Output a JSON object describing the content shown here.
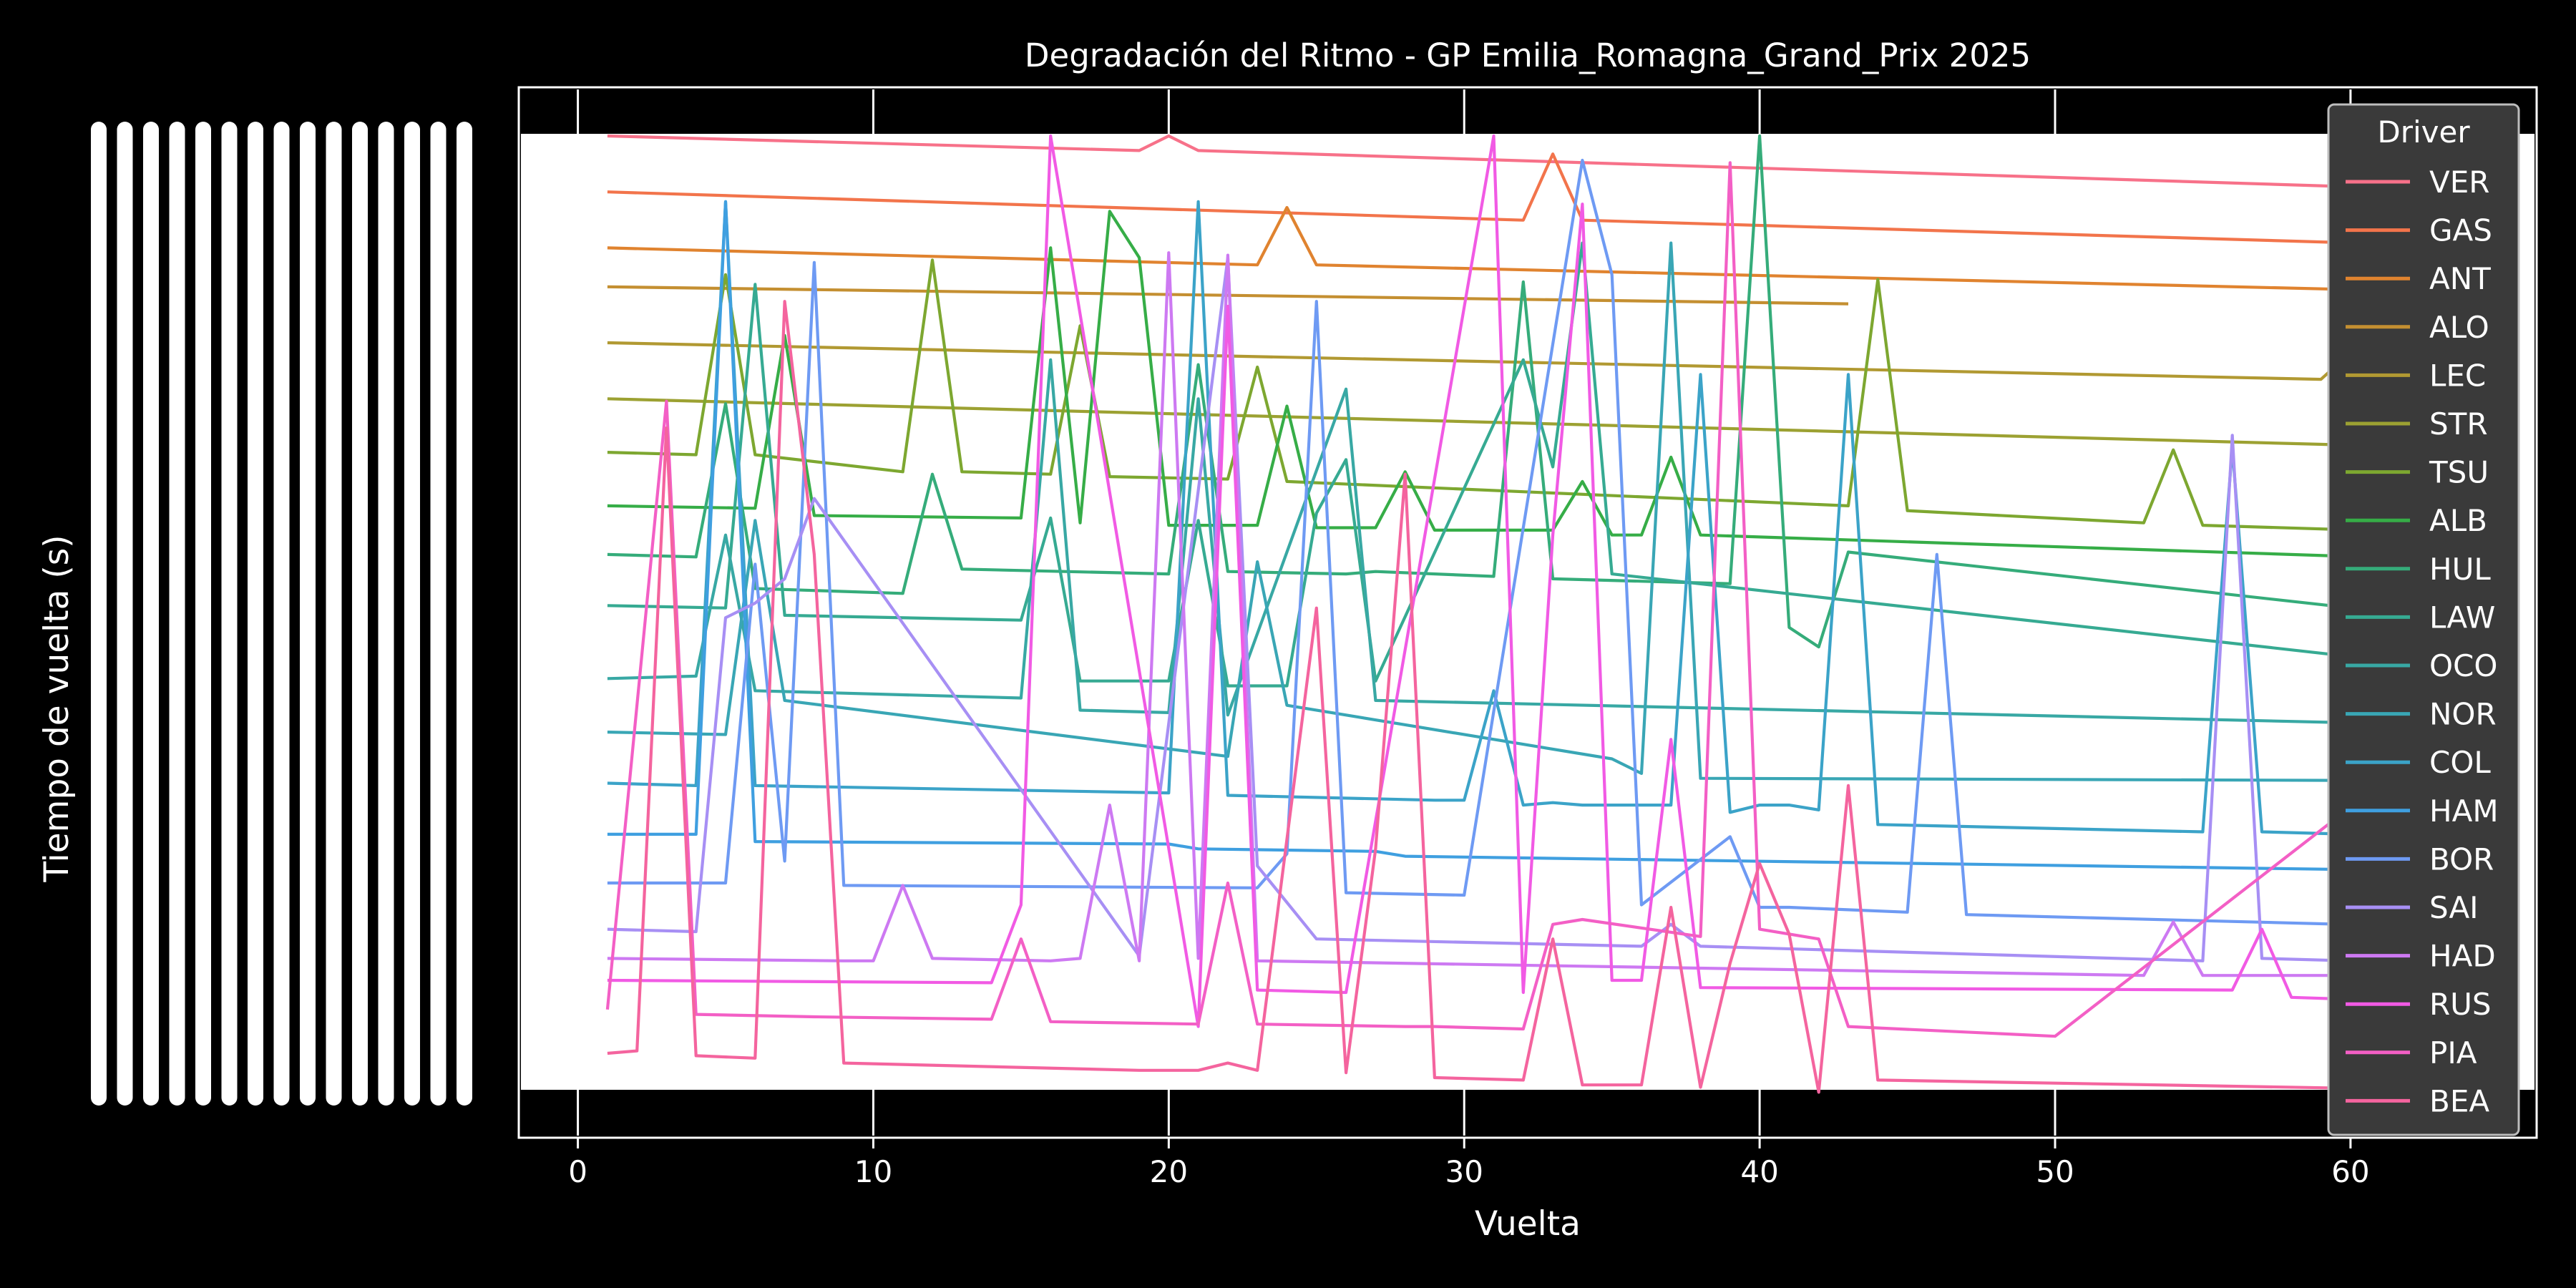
{
  "chart_data": {
    "type": "line",
    "title": "Degradación del Ritmo - GP Emilia_Romagna_Grand_Prix 2025",
    "xlabel": "Vuelta",
    "ylabel": "Tiempo de vuelta (s)",
    "xlim": [
      -2,
      66.3
    ],
    "x_ticks": [
      0,
      10,
      20,
      30,
      40,
      50,
      60
    ],
    "grid": true,
    "y_tick_labels_illegible": true,
    "legend": {
      "title": "Driver",
      "placement": "right"
    },
    "series": [
      {
        "name": "VER",
        "color": "#f77189",
        "points": [
          [
            1,
            0.0
          ],
          [
            19,
            0.3
          ],
          [
            20,
            0.0
          ],
          [
            21,
            0.3
          ],
          [
            63,
            1.1
          ]
        ]
      },
      {
        "name": "GAS",
        "color": "#f2744b",
        "points": [
          [
            1,
            1.15
          ],
          [
            32,
            1.73
          ],
          [
            33,
            0.37
          ],
          [
            34,
            1.73
          ],
          [
            63,
            2.25
          ]
        ]
      },
      {
        "name": "ANT",
        "color": "#e0832f",
        "points": [
          [
            1,
            2.3
          ],
          [
            23,
            2.65
          ],
          [
            24,
            1.47
          ],
          [
            25,
            2.65
          ],
          [
            63,
            3.2
          ]
        ]
      },
      {
        "name": "ALO",
        "color": "#c48f31",
        "points": [
          [
            1,
            3.1
          ],
          [
            43,
            3.45
          ]
        ]
      },
      {
        "name": "LEC",
        "color": "#b19932",
        "points": [
          [
            1,
            4.25
          ],
          [
            59,
            5.0
          ],
          [
            60,
            4.45
          ],
          [
            61,
            5.0
          ],
          [
            63,
            5.1
          ]
        ]
      },
      {
        "name": "STR",
        "color": "#9ca132",
        "points": [
          [
            1,
            5.4
          ],
          [
            63,
            6.4
          ]
        ]
      },
      {
        "name": "TSU",
        "color": "#7da730",
        "points": [
          [
            1,
            6.5
          ],
          [
            4,
            6.55
          ],
          [
            5,
            2.85
          ],
          [
            6,
            6.55
          ],
          [
            11,
            6.9
          ],
          [
            12,
            2.55
          ],
          [
            13,
            6.9
          ],
          [
            16,
            6.95
          ],
          [
            17,
            3.9
          ],
          [
            18,
            7.0
          ],
          [
            22,
            7.05
          ],
          [
            23,
            4.75
          ],
          [
            24,
            7.1
          ],
          [
            43,
            7.6
          ],
          [
            44,
            2.95
          ],
          [
            45,
            7.7
          ],
          [
            53,
            7.95
          ],
          [
            54,
            6.45
          ],
          [
            55,
            8.0
          ],
          [
            63,
            8.15
          ]
        ]
      },
      {
        "name": "ALB",
        "color": "#36ad47",
        "points": [
          [
            1,
            7.6
          ],
          [
            6,
            7.65
          ],
          [
            7,
            4.1
          ],
          [
            8,
            7.8
          ],
          [
            15,
            7.85
          ],
          [
            16,
            2.3
          ],
          [
            17,
            7.95
          ],
          [
            18,
            1.55
          ],
          [
            19,
            2.5
          ],
          [
            20,
            8.0
          ],
          [
            23,
            8.0
          ],
          [
            24,
            5.55
          ],
          [
            25,
            8.05
          ],
          [
            27,
            8.05
          ],
          [
            28,
            6.9
          ],
          [
            29,
            8.1
          ],
          [
            33,
            8.1
          ],
          [
            34,
            7.1
          ],
          [
            35,
            8.2
          ],
          [
            36,
            8.2
          ],
          [
            37,
            6.6
          ],
          [
            38,
            8.2
          ],
          [
            63,
            8.7
          ]
        ]
      },
      {
        "name": "HUL",
        "color": "#35ac7a",
        "points": [
          [
            1,
            8.6
          ],
          [
            4,
            8.65
          ],
          [
            5,
            5.5
          ],
          [
            6,
            9.3
          ],
          [
            11,
            9.4
          ],
          [
            12,
            6.95
          ],
          [
            13,
            8.9
          ],
          [
            20,
            9.0
          ],
          [
            21,
            4.7
          ],
          [
            22,
            8.95
          ],
          [
            26,
            9.0
          ],
          [
            27,
            8.95
          ],
          [
            31,
            9.05
          ],
          [
            32,
            3.0
          ],
          [
            33,
            9.1
          ],
          [
            39,
            9.2
          ],
          [
            40,
            0.0
          ],
          [
            41,
            10.1
          ],
          [
            42,
            10.5
          ],
          [
            43,
            8.55
          ],
          [
            63,
            9.9
          ]
        ]
      },
      {
        "name": "LAW",
        "color": "#36aa92",
        "points": [
          [
            1,
            9.65
          ],
          [
            5,
            9.7
          ],
          [
            6,
            3.05
          ],
          [
            7,
            9.85
          ],
          [
            15,
            9.95
          ],
          [
            16,
            7.85
          ],
          [
            17,
            11.2
          ],
          [
            20,
            11.2
          ],
          [
            21,
            7.9
          ],
          [
            22,
            11.3
          ],
          [
            24,
            11.3
          ],
          [
            25,
            7.75
          ],
          [
            26,
            6.65
          ],
          [
            27,
            11.2
          ],
          [
            32,
            4.6
          ],
          [
            33,
            6.8
          ],
          [
            34,
            2.2
          ],
          [
            35,
            9.0
          ],
          [
            63,
            10.9
          ]
        ]
      },
      {
        "name": "OCO",
        "color": "#38a8a4",
        "points": [
          [
            1,
            11.15
          ],
          [
            4,
            11.1
          ],
          [
            5,
            8.2
          ],
          [
            6,
            11.4
          ],
          [
            15,
            11.55
          ],
          [
            16,
            4.6
          ],
          [
            17,
            11.8
          ],
          [
            20,
            11.85
          ],
          [
            21,
            5.4
          ],
          [
            22,
            11.9
          ],
          [
            26,
            5.2
          ],
          [
            27,
            11.6
          ],
          [
            63,
            12.1
          ]
        ]
      },
      {
        "name": "NOR",
        "color": "#39a6b5",
        "points": [
          [
            1,
            12.25
          ],
          [
            5,
            12.3
          ],
          [
            6,
            7.9
          ],
          [
            7,
            11.6
          ],
          [
            22,
            12.75
          ],
          [
            23,
            8.75
          ],
          [
            24,
            11.7
          ],
          [
            35,
            12.8
          ],
          [
            36,
            13.1
          ],
          [
            37,
            2.2
          ],
          [
            38,
            13.2
          ],
          [
            63,
            13.25
          ]
        ]
      },
      {
        "name": "COL",
        "color": "#3ba3c8",
        "points": [
          [
            1,
            13.3
          ],
          [
            4,
            13.35
          ],
          [
            5,
            1.35
          ],
          [
            6,
            13.35
          ],
          [
            20,
            13.5
          ],
          [
            21,
            1.35
          ],
          [
            22,
            13.55
          ],
          [
            29,
            13.65
          ],
          [
            30,
            13.65
          ],
          [
            31,
            11.4
          ],
          [
            32,
            13.75
          ],
          [
            33,
            13.7
          ],
          [
            34,
            13.75
          ],
          [
            35,
            13.75
          ],
          [
            36,
            13.75
          ],
          [
            37,
            13.75
          ],
          [
            38,
            4.9
          ],
          [
            39,
            13.9
          ],
          [
            40,
            13.75
          ],
          [
            41,
            13.75
          ],
          [
            42,
            13.85
          ],
          [
            43,
            4.9
          ],
          [
            44,
            14.15
          ],
          [
            55,
            14.3
          ],
          [
            56,
            6.4
          ],
          [
            57,
            14.3
          ],
          [
            63,
            14.4
          ]
        ]
      },
      {
        "name": "HAM",
        "color": "#3f9fe0",
        "points": [
          [
            1,
            14.35
          ],
          [
            4,
            14.35
          ],
          [
            5,
            1.35
          ],
          [
            6,
            14.5
          ],
          [
            20,
            14.55
          ],
          [
            21,
            14.65
          ],
          [
            27,
            14.7
          ],
          [
            28,
            14.8
          ],
          [
            63,
            15.1
          ]
        ]
      },
      {
        "name": "BOR",
        "color": "#6e9af3",
        "points": [
          [
            1,
            15.35
          ],
          [
            5,
            15.35
          ],
          [
            6,
            8.8
          ],
          [
            7,
            14.9
          ],
          [
            8,
            2.6
          ],
          [
            9,
            15.4
          ],
          [
            23,
            15.45
          ],
          [
            24,
            14.75
          ],
          [
            25,
            3.4
          ],
          [
            26,
            15.55
          ],
          [
            30,
            15.6
          ],
          [
            34,
            0.5
          ],
          [
            35,
            2.85
          ],
          [
            36,
            15.8
          ],
          [
            39,
            14.4
          ],
          [
            40,
            15.85
          ],
          [
            41,
            15.85
          ],
          [
            45,
            15.95
          ],
          [
            46,
            8.6
          ],
          [
            47,
            16.0
          ],
          [
            63,
            16.25
          ]
        ]
      },
      {
        "name": "SAI",
        "color": "#a78ff4",
        "points": [
          [
            1,
            16.3
          ],
          [
            4,
            16.35
          ],
          [
            5,
            9.9
          ],
          [
            6,
            9.6
          ],
          [
            7,
            9.1
          ],
          [
            8,
            7.45
          ],
          [
            19,
            16.85
          ],
          [
            22,
            2.5
          ],
          [
            23,
            15.0
          ],
          [
            25,
            16.5
          ],
          [
            36,
            16.65
          ],
          [
            37,
            16.2
          ],
          [
            38,
            16.65
          ],
          [
            55,
            16.95
          ],
          [
            56,
            6.15
          ],
          [
            57,
            16.9
          ],
          [
            63,
            17.0
          ]
        ]
      },
      {
        "name": "HAD",
        "color": "#cd79f2",
        "points": [
          [
            1,
            16.9
          ],
          [
            9,
            16.95
          ],
          [
            10,
            16.95
          ],
          [
            11,
            15.4
          ],
          [
            12,
            16.9
          ],
          [
            16,
            16.95
          ],
          [
            17,
            16.9
          ],
          [
            18,
            13.75
          ],
          [
            19,
            16.95
          ],
          [
            20,
            2.4
          ],
          [
            21,
            16.9
          ],
          [
            22,
            2.45
          ],
          [
            23,
            16.95
          ],
          [
            53,
            17.25
          ],
          [
            54,
            16.15
          ],
          [
            55,
            17.25
          ],
          [
            61,
            17.25
          ],
          [
            62,
            12.0
          ],
          [
            63,
            16.9
          ]
        ]
      },
      {
        "name": "RUS",
        "color": "#f15ae4",
        "points": [
          [
            1,
            17.35
          ],
          [
            14,
            17.4
          ],
          [
            15,
            15.8
          ],
          [
            16,
            0.0
          ],
          [
            21,
            18.3
          ],
          [
            22,
            3.5
          ],
          [
            23,
            17.55
          ],
          [
            26,
            17.6
          ],
          [
            31,
            0.0
          ],
          [
            32,
            17.6
          ],
          [
            33,
            8.2
          ],
          [
            34,
            1.4
          ],
          [
            35,
            17.35
          ],
          [
            36,
            17.35
          ],
          [
            37,
            12.4
          ],
          [
            38,
            17.5
          ],
          [
            56,
            17.55
          ],
          [
            57,
            16.3
          ],
          [
            58,
            17.7
          ],
          [
            63,
            17.8
          ]
        ]
      },
      {
        "name": "PIA",
        "color": "#f35fc5",
        "points": [
          [
            1,
            17.95
          ],
          [
            3,
            5.45
          ],
          [
            4,
            18.05
          ],
          [
            8,
            18.1
          ],
          [
            14,
            18.15
          ],
          [
            15,
            16.5
          ],
          [
            16,
            18.2
          ],
          [
            21,
            18.25
          ],
          [
            22,
            15.35
          ],
          [
            23,
            18.25
          ],
          [
            28,
            18.3
          ],
          [
            29,
            18.3
          ],
          [
            32,
            18.35
          ],
          [
            33,
            16.2
          ],
          [
            34,
            16.1
          ],
          [
            38,
            16.45
          ],
          [
            39,
            0.55
          ],
          [
            40,
            16.3
          ],
          [
            42,
            16.5
          ],
          [
            43,
            18.3
          ],
          [
            50,
            18.5
          ],
          [
            62,
            12.85
          ],
          [
            63,
            18.65
          ]
        ]
      },
      {
        "name": "BEA",
        "color": "#f4649e",
        "points": [
          [
            1,
            18.85
          ],
          [
            2,
            18.8
          ],
          [
            3,
            6.0
          ],
          [
            4,
            18.9
          ],
          [
            6,
            18.95
          ],
          [
            7,
            3.4
          ],
          [
            8,
            8.6
          ],
          [
            9,
            19.05
          ],
          [
            19,
            19.2
          ],
          [
            21,
            19.2
          ],
          [
            22,
            19.05
          ],
          [
            23,
            19.2
          ],
          [
            25,
            9.7
          ],
          [
            26,
            19.25
          ],
          [
            27,
            14.65
          ],
          [
            28,
            6.95
          ],
          [
            29,
            19.35
          ],
          [
            32,
            19.4
          ],
          [
            33,
            16.5
          ],
          [
            34,
            19.5
          ],
          [
            36,
            19.5
          ],
          [
            37,
            15.85
          ],
          [
            38,
            19.55
          ],
          [
            39,
            17.0
          ],
          [
            40,
            14.95
          ],
          [
            41,
            16.4
          ],
          [
            42,
            19.65
          ],
          [
            43,
            13.35
          ],
          [
            44,
            19.4
          ],
          [
            63,
            19.6
          ]
        ]
      }
    ]
  }
}
